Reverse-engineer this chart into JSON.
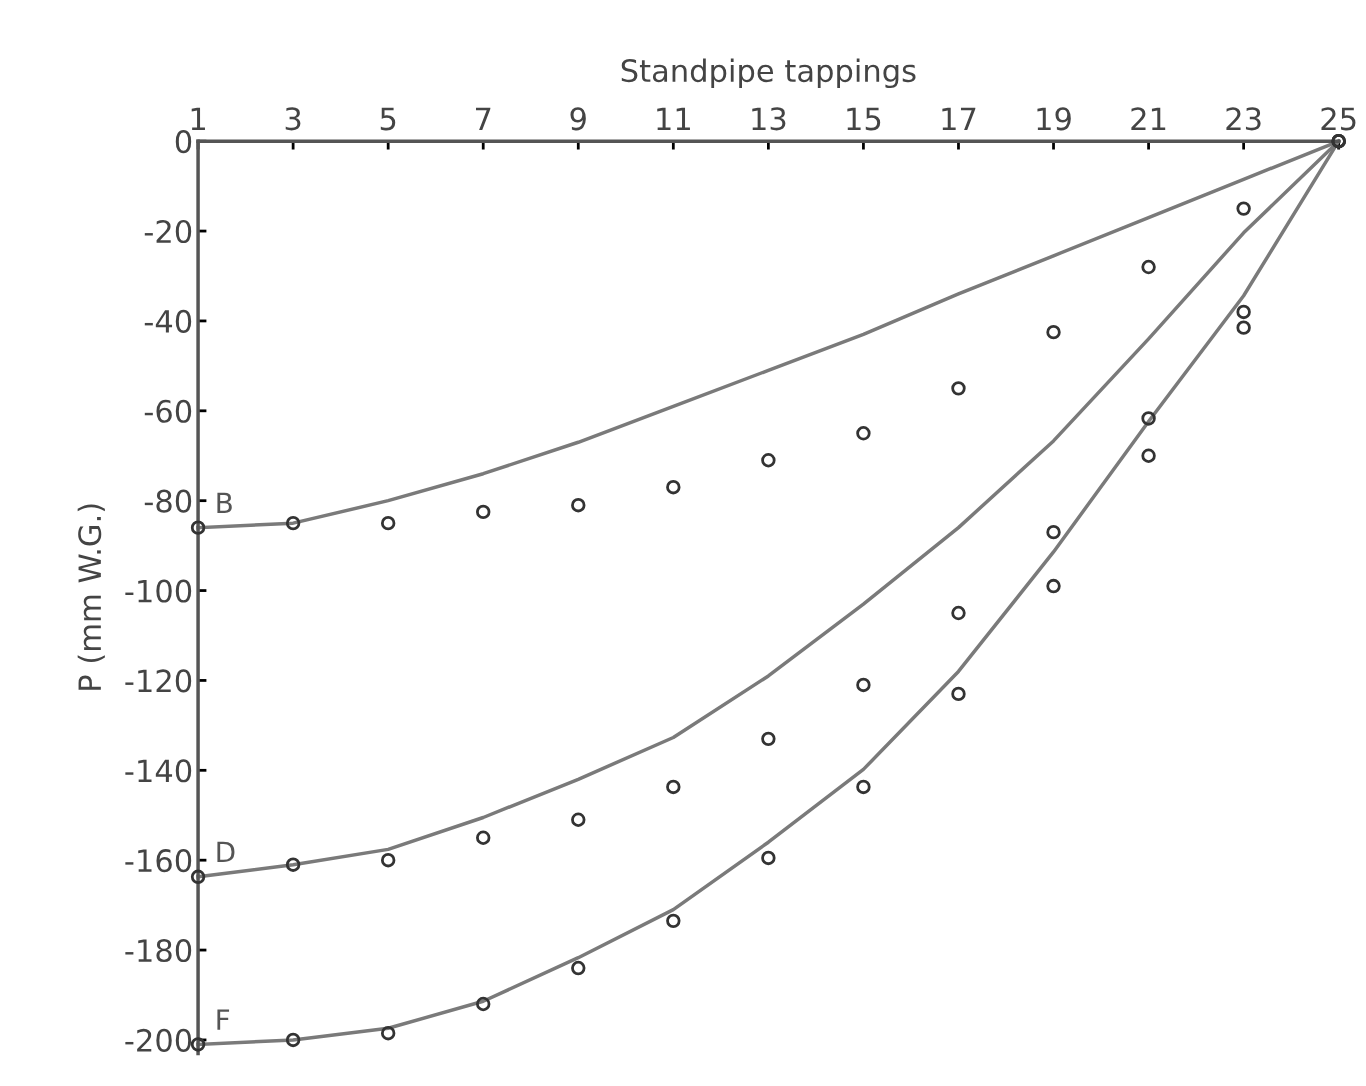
{
  "chart_data": {
    "type": "line",
    "xlabel": "Standpipe tappings",
    "ylabel": "P (mm W.G.)",
    "x": [
      1,
      3,
      5,
      7,
      9,
      11,
      13,
      15,
      17,
      19,
      21,
      23,
      25
    ],
    "xlim": [
      1,
      25
    ],
    "xticks": [
      1,
      3,
      5,
      7,
      9,
      11,
      13,
      15,
      17,
      19,
      21,
      23,
      25
    ],
    "ylim": [
      -203,
      0
    ],
    "yticks": [
      0,
      -20,
      -40,
      -60,
      -80,
      -100,
      -120,
      -140,
      -160,
      -180,
      -200
    ],
    "grid": false,
    "legend": false,
    "series": [
      {
        "name": "B",
        "color": "#7a7a7a",
        "marker": "none",
        "line_style": "solid",
        "values": [
          -86,
          -85,
          -80,
          -74,
          -67,
          -59,
          -51,
          -43,
          -34,
          -25.5,
          -17,
          -8.5,
          0
        ]
      },
      {
        "name": "D",
        "color": "#7a7a7a",
        "marker": "none",
        "line_style": "solid",
        "values": [
          -163.7,
          -161,
          -157.6,
          -150.5,
          -142,
          -132.7,
          -119,
          -103,
          -86,
          -66.7,
          -44,
          -20.4,
          0
        ]
      },
      {
        "name": "F",
        "color": "#7a7a7a",
        "marker": "none",
        "line_style": "solid",
        "values": [
          -201,
          -200,
          -197.4,
          -191.4,
          -181.7,
          -171,
          -156,
          -139.8,
          -118,
          -91.4,
          -62.4,
          -34.4,
          0
        ]
      },
      {
        "type": "scatter",
        "color": "#333333",
        "marker": "circle",
        "values": [
          -86,
          -85,
          -85,
          -82.5,
          -81,
          -77,
          -71,
          -65,
          -55,
          -42.5,
          -28,
          -15,
          0
        ]
      },
      {
        "type": "scatter",
        "color": "#333333",
        "marker": "circle",
        "values": [
          -163.7,
          -161,
          -160,
          -155,
          -151,
          -143.7,
          -133,
          -121,
          -105,
          -87,
          -61.7,
          -38,
          0
        ]
      },
      {
        "type": "scatter",
        "color": "#333333",
        "marker": "circle",
        "values": [
          -201,
          -200,
          -198.5,
          -192,
          -184,
          -173.5,
          -159.5,
          -143.7,
          -123,
          -99,
          -70,
          -41.5,
          0
        ]
      }
    ]
  }
}
